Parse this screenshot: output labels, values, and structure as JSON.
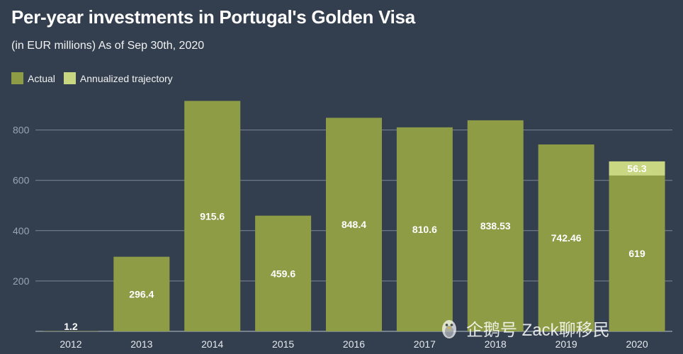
{
  "header": {
    "title": "Per-year investments in Portugal's Golden Visa",
    "subtitle": "(in EUR millions) As of Sep 30th, 2020"
  },
  "legend": {
    "actual_label": "Actual",
    "trajectory_label": "Annualized trajectory"
  },
  "colors": {
    "background": "#333f4f",
    "actual": "#8e9c45",
    "trajectory": "#c9d782",
    "grid": "#7c8795"
  },
  "watermark": {
    "text": "企鹅号 Zack聊移民"
  },
  "chart_data": {
    "type": "bar",
    "categories": [
      "2012",
      "2013",
      "2014",
      "2015",
      "2016",
      "2017",
      "2018",
      "2019",
      "2020"
    ],
    "series": [
      {
        "name": "Actual",
        "values": [
          1.2,
          296.4,
          915.6,
          459.6,
          848.4,
          810.6,
          838.53,
          742.46,
          619
        ],
        "labels": [
          "1.2",
          "296.4",
          "915.6",
          "459.6",
          "848.4",
          "810.6",
          "838.53",
          "742.46",
          "619"
        ]
      },
      {
        "name": "Annualized trajectory",
        "values": [
          null,
          null,
          null,
          null,
          null,
          null,
          null,
          null,
          56.3
        ],
        "labels": [
          "",
          "",
          "",
          "",
          "",
          "",
          "",
          "",
          "56.3"
        ]
      }
    ],
    "stacked": true,
    "title": "Per-year investments in Portugal's Golden Visa",
    "subtitle": "(in EUR millions) As of Sep 30th, 2020",
    "xlabel": "",
    "ylabel": "",
    "ylim": [
      0,
      900
    ],
    "yticks": [
      200,
      400,
      600,
      800
    ],
    "grid": true,
    "legend_position": "top-left"
  }
}
